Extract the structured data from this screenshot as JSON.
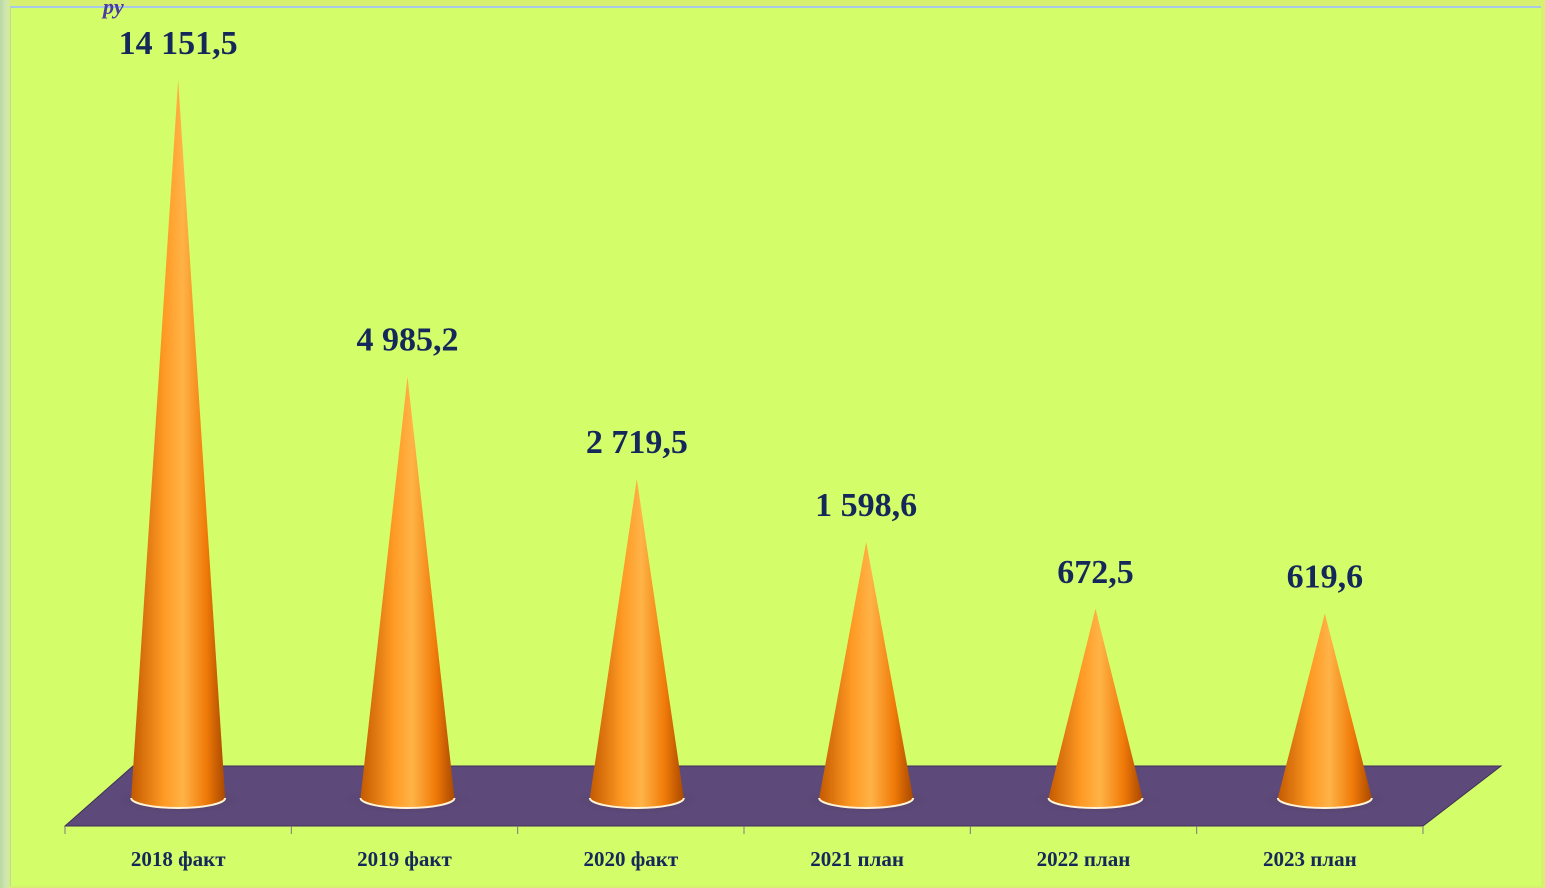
{
  "corner_fragment": "py",
  "chart_data": {
    "type": "bar",
    "bar_shape": "cone",
    "categories": [
      "2018 факт",
      "2019 факт",
      "2020 факт",
      "2021 план",
      "2022 план",
      "2023 план"
    ],
    "values": [
      14151.5,
      4985.2,
      2719.5,
      1598.6,
      672.5,
      619.6
    ],
    "value_labels": [
      "14 151,5",
      "4 985,2",
      "2 719,5",
      "1 598,6",
      "672,5",
      "619,6"
    ],
    "title": "",
    "xlabel": "",
    "ylabel": "",
    "grid": false,
    "legend": "none",
    "colors": {
      "background": "#d4fd6a",
      "floor": "#5e4a7a",
      "cone": "#f58a0e",
      "label": "#14285a"
    }
  }
}
